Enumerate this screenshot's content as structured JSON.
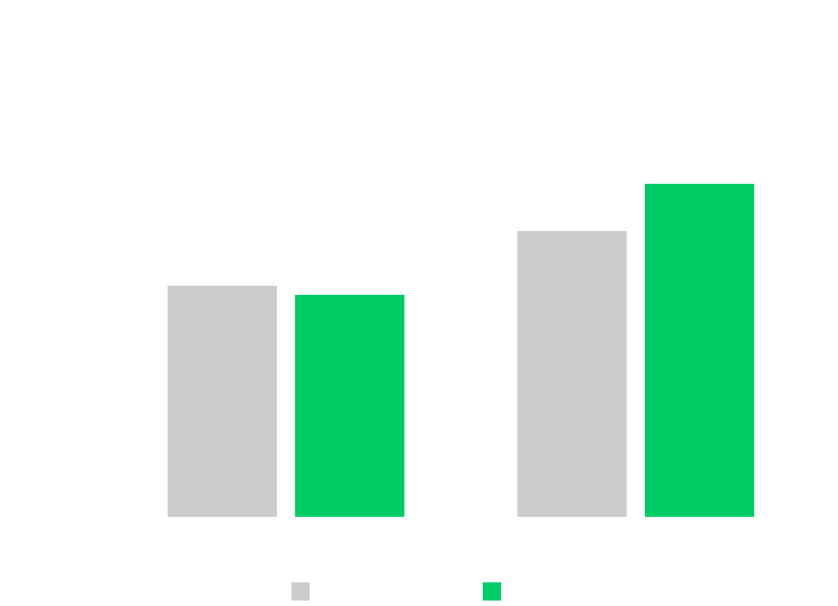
{
  "chart_data": {
    "type": "bar",
    "title": "",
    "xlabel": "",
    "ylabel": "",
    "categories": [
      "",
      ""
    ],
    "series": [
      {
        "color": "#cccccc",
        "values": [
          254,
          314
        ]
      },
      {
        "color": "#00cc66",
        "values": [
          244,
          366
        ]
      }
    ],
    "ylim": [
      0,
      400
    ],
    "grid": false,
    "legend": {
      "placement": "bottom-center"
    }
  }
}
